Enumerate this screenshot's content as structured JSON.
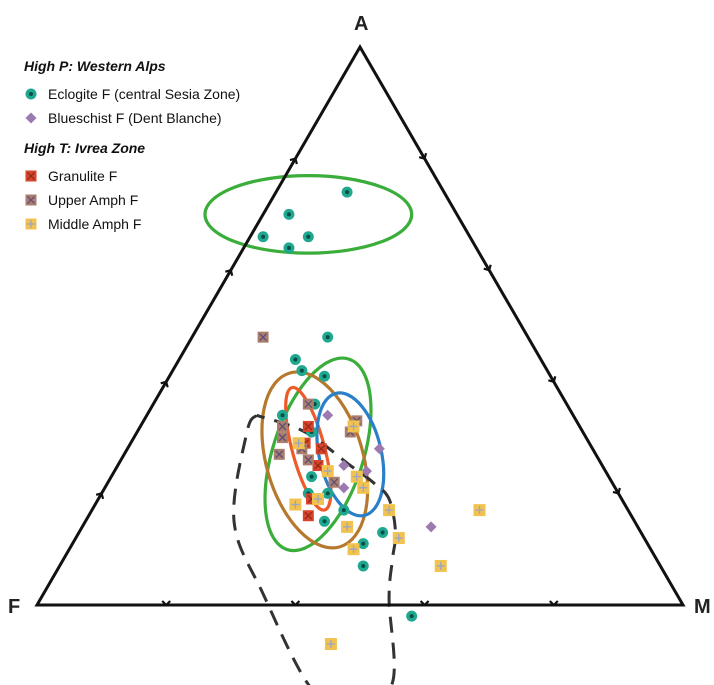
{
  "vertices": {
    "top": "A",
    "left": "F",
    "right": "M"
  },
  "legend": {
    "group1_title": "High P: Western Alps",
    "group1_items": [
      {
        "label": "Eclogite F (central Sesia Zone)",
        "series": "eclogite"
      },
      {
        "label": "Blueschist F (Dent Blanche)",
        "series": "blueschist"
      }
    ],
    "group2_title": "High T: Ivrea Zone",
    "group2_items": [
      {
        "label": "Granulite F",
        "series": "granulite"
      },
      {
        "label": "Upper Amph F",
        "series": "upper_amph"
      },
      {
        "label": "Middle Amph F",
        "series": "middle_amph"
      }
    ]
  },
  "colors": {
    "eclogite": "#1fa88f",
    "blueschist": "#9c7ab0",
    "granulite": "#d8432c",
    "upper_amph": "#a97e6d",
    "middle_amph": "#f2c24e",
    "ellipse_green": "#3aad3a",
    "ellipse_brown": "#b5782c",
    "ellipse_orange": "#ee5a2a",
    "ellipse_blue": "#2a7fc9",
    "ellipse_dashed": "#333333"
  },
  "chart_data": {
    "type": "scatter",
    "subtype": "ternary (AFM)",
    "axes": {
      "A": "top",
      "F": "left",
      "M": "right"
    },
    "series": [
      {
        "name": "Eclogite F (central Sesia Zone)",
        "key": "eclogite",
        "marker": "circle",
        "points": [
          {
            "A": 0.74,
            "F": 0.15,
            "M": 0.11
          },
          {
            "A": 0.7,
            "F": 0.26,
            "M": 0.04
          },
          {
            "A": 0.66,
            "F": 0.32,
            "M": 0.02
          },
          {
            "A": 0.66,
            "F": 0.25,
            "M": 0.09
          },
          {
            "A": 0.64,
            "F": 0.29,
            "M": 0.07
          },
          {
            "A": 0.48,
            "F": 0.31,
            "M": 0.21
          },
          {
            "A": 0.44,
            "F": 0.38,
            "M": 0.18
          },
          {
            "A": 0.42,
            "F": 0.38,
            "M": 0.2
          },
          {
            "A": 0.41,
            "F": 0.35,
            "M": 0.24
          },
          {
            "A": 0.36,
            "F": 0.39,
            "M": 0.25
          },
          {
            "A": 0.34,
            "F": 0.45,
            "M": 0.21
          },
          {
            "A": 0.31,
            "F": 0.42,
            "M": 0.27
          },
          {
            "A": 0.29,
            "F": 0.45,
            "M": 0.26
          },
          {
            "A": 0.23,
            "F": 0.46,
            "M": 0.31
          },
          {
            "A": 0.2,
            "F": 0.48,
            "M": 0.32
          },
          {
            "A": 0.2,
            "F": 0.45,
            "M": 0.35
          },
          {
            "A": 0.17,
            "F": 0.44,
            "M": 0.39
          },
          {
            "A": 0.17,
            "F": 0.37,
            "M": 0.46
          },
          {
            "A": 0.15,
            "F": 0.48,
            "M": 0.37
          },
          {
            "A": 0.13,
            "F": 0.4,
            "M": 0.47
          },
          {
            "A": 0.11,
            "F": 0.44,
            "M": 0.45
          },
          {
            "A": 0.07,
            "F": 0.46,
            "M": 0.47
          },
          {
            "A": -0.02,
            "F": 0.43,
            "M": 0.59
          }
        ]
      },
      {
        "name": "Blueschist F (Dent Blanche)",
        "key": "blueschist",
        "marker": "diamond",
        "points": [
          {
            "A": 0.34,
            "F": 0.38,
            "M": 0.28
          },
          {
            "A": 0.28,
            "F": 0.33,
            "M": 0.39
          },
          {
            "A": 0.25,
            "F": 0.4,
            "M": 0.35
          },
          {
            "A": 0.24,
            "F": 0.37,
            "M": 0.39
          },
          {
            "A": 0.21,
            "F": 0.42,
            "M": 0.37
          },
          {
            "A": 0.14,
            "F": 0.32,
            "M": 0.54
          }
        ]
      },
      {
        "name": "Granulite F",
        "key": "granulite",
        "marker": "square-x",
        "points": [
          {
            "A": 0.32,
            "F": 0.42,
            "M": 0.26
          },
          {
            "A": 0.29,
            "F": 0.44,
            "M": 0.27
          },
          {
            "A": 0.28,
            "F": 0.42,
            "M": 0.3
          },
          {
            "A": 0.25,
            "F": 0.44,
            "M": 0.31
          },
          {
            "A": 0.19,
            "F": 0.48,
            "M": 0.33
          },
          {
            "A": 0.16,
            "F": 0.5,
            "M": 0.34
          }
        ]
      },
      {
        "name": "Upper Amph F",
        "key": "upper_amph",
        "marker": "square-x",
        "points": [
          {
            "A": 0.48,
            "F": 0.41,
            "M": 0.11
          },
          {
            "A": 0.36,
            "F": 0.4,
            "M": 0.24
          },
          {
            "A": 0.32,
            "F": 0.46,
            "M": 0.22
          },
          {
            "A": 0.33,
            "F": 0.34,
            "M": 0.33
          },
          {
            "A": 0.31,
            "F": 0.36,
            "M": 0.33
          },
          {
            "A": 0.3,
            "F": 0.47,
            "M": 0.23
          },
          {
            "A": 0.28,
            "F": 0.45,
            "M": 0.27
          },
          {
            "A": 0.27,
            "F": 0.49,
            "M": 0.24
          },
          {
            "A": 0.26,
            "F": 0.45,
            "M": 0.29
          },
          {
            "A": 0.22,
            "F": 0.43,
            "M": 0.35
          }
        ]
      },
      {
        "name": "Middle Amph F",
        "key": "middle_amph",
        "marker": "square-plus",
        "points": [
          {
            "A": 0.32,
            "F": 0.35,
            "M": 0.33
          },
          {
            "A": 0.29,
            "F": 0.45,
            "M": 0.26
          },
          {
            "A": 0.24,
            "F": 0.43,
            "M": 0.33
          },
          {
            "A": 0.23,
            "F": 0.39,
            "M": 0.38
          },
          {
            "A": 0.21,
            "F": 0.39,
            "M": 0.4
          },
          {
            "A": 0.18,
            "F": 0.51,
            "M": 0.31
          },
          {
            "A": 0.19,
            "F": 0.47,
            "M": 0.34
          },
          {
            "A": 0.17,
            "F": 0.37,
            "M": 0.46
          },
          {
            "A": 0.17,
            "F": 0.23,
            "M": 0.6
          },
          {
            "A": 0.14,
            "F": 0.45,
            "M": 0.41
          },
          {
            "A": 0.12,
            "F": 0.38,
            "M": 0.5
          },
          {
            "A": 0.1,
            "F": 0.46,
            "M": 0.44
          },
          {
            "A": 0.07,
            "F": 0.34,
            "M": 0.59
          },
          {
            "A": -0.07,
            "F": 0.58,
            "M": 0.49
          }
        ]
      }
    ],
    "tick_fractions": [
      0.2,
      0.4,
      0.6,
      0.8
    ],
    "grid": false,
    "legend_position": "top-left"
  },
  "overlays": {
    "ellipses": [
      {
        "colorKey": "ellipse_green",
        "dashed": false,
        "center": {
          "A": 0.7,
          "F": 0.23,
          "M": 0.07
        },
        "rx_frac": 0.16,
        "ry_frac": 0.06,
        "angle": 0
      },
      {
        "colorKey": "ellipse_green",
        "dashed": false,
        "center": {
          "A": 0.27,
          "F": 0.43,
          "M": 0.3
        },
        "rx_frac": 0.07,
        "ry_frac": 0.155,
        "angle": 18
      },
      {
        "colorKey": "ellipse_brown",
        "dashed": false,
        "center": {
          "A": 0.26,
          "F": 0.44,
          "M": 0.3
        },
        "rx_frac": 0.075,
        "ry_frac": 0.14,
        "angle": -16
      },
      {
        "colorKey": "ellipse_orange",
        "dashed": false,
        "center": {
          "A": 0.28,
          "F": 0.44,
          "M": 0.28
        },
        "rx_frac": 0.025,
        "ry_frac": 0.098,
        "angle": -15
      },
      {
        "colorKey": "ellipse_blue",
        "dashed": false,
        "center": {
          "A": 0.27,
          "F": 0.38,
          "M": 0.35
        },
        "rx_frac": 0.048,
        "ry_frac": 0.097,
        "angle": -13
      }
    ],
    "dashed_region": {
      "colorKey": "ellipse_dashed",
      "path": [
        {
          "A": 0.34,
          "F": 0.49,
          "M": 0.17
        },
        {
          "A": 0.31,
          "F": 0.52,
          "M": 0.17
        },
        {
          "A": 0.15,
          "F": 0.62,
          "M": 0.23
        },
        {
          "A": 0.02,
          "F": 0.64,
          "M": 0.34
        },
        {
          "A": -0.15,
          "F": 0.65,
          "M": 0.5
        },
        {
          "A": -0.18,
          "F": 0.6,
          "M": 0.58
        },
        {
          "A": -0.14,
          "F": 0.52,
          "M": 0.62
        },
        {
          "A": 0.01,
          "F": 0.45,
          "M": 0.54
        },
        {
          "A": 0.08,
          "F": 0.41,
          "M": 0.51
        },
        {
          "A": 0.13,
          "F": 0.38,
          "M": 0.49
        },
        {
          "A": 0.19,
          "F": 0.36,
          "M": 0.45
        },
        {
          "A": 0.22,
          "F": 0.37,
          "M": 0.41
        },
        {
          "A": 0.25,
          "F": 0.39,
          "M": 0.36
        },
        {
          "A": 0.31,
          "F": 0.43,
          "M": 0.26
        },
        {
          "A": 0.34,
          "F": 0.49,
          "M": 0.17
        }
      ]
    }
  }
}
